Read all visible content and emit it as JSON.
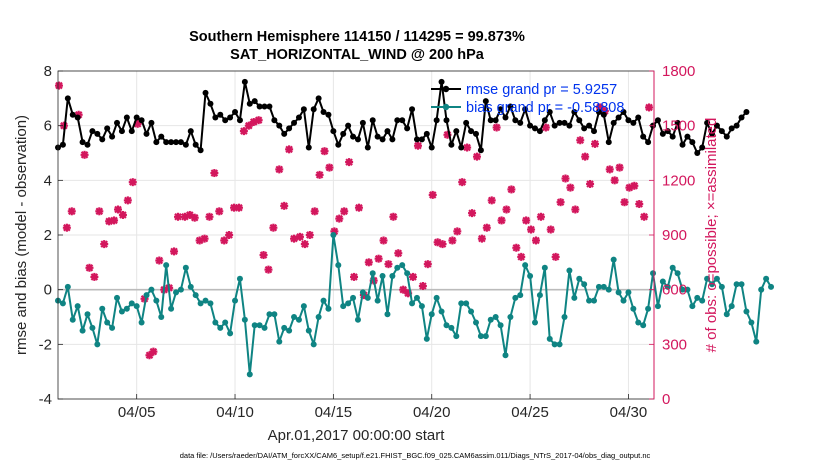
{
  "chart_data": {
    "type": "line",
    "title": "Southern Hemisphere 114150 / 114295 = 99.873%",
    "subtitle": "SAT_HORIZONTAL_WIND @ 200 hPa",
    "xlabel": "Apr.01,2017 00:00:00 start",
    "ylabel": "rmse and bias (model - observation)",
    "y2label": "# of obs: o=possible; ×=assimilated",
    "footnote": "data file: /Users/raeder/DAI/ATM_forcXX/CAM6_setup/f.e21.FHIST_BGC.f09_025.CAM6assim.011/Diags_NTrS_2017-04/obs_diag_output.nc",
    "xlim": [
      1,
      31.3
    ],
    "ylim": [
      -4,
      8
    ],
    "y2lim": [
      0,
      1800
    ],
    "xticks": [
      {
        "value": 5,
        "label": "04/05"
      },
      {
        "value": 10,
        "label": "04/10"
      },
      {
        "value": 15,
        "label": "04/15"
      },
      {
        "value": 20,
        "label": "04/20"
      },
      {
        "value": 25,
        "label": "04/25"
      },
      {
        "value": 30,
        "label": "04/30"
      }
    ],
    "yticks": [
      "-4",
      "-2",
      "0",
      "2",
      "4",
      "6",
      "8"
    ],
    "y2ticks": [
      "0",
      "300",
      "600",
      "900",
      "1200",
      "1500",
      "1800"
    ],
    "grid": true,
    "colors": {
      "rmse": "#000000",
      "bias": "#0f8483",
      "obs": "#d3175d",
      "zero": "#bbbbbb",
      "legend_text": "#0033ee"
    },
    "series": [
      {
        "name": "rmse grand pr = 5.9257",
        "axis": "left",
        "x_start": 1,
        "x_step": 0.25,
        "values": [
          5.2,
          5.3,
          7.0,
          6.4,
          6.3,
          5.4,
          5.3,
          5.8,
          5.7,
          5.5,
          5.9,
          5.6,
          6.1,
          5.8,
          6.3,
          5.8,
          6.3,
          6.2,
          5.7,
          6.1,
          5.4,
          5.6,
          5.4,
          5.4,
          5.4,
          5.4,
          5.3,
          5.8,
          5.3,
          5.1,
          7.2,
          6.8,
          6.3,
          6.4,
          6.2,
          6.3,
          6.5,
          6.2,
          7.6,
          6.8,
          6.9,
          6.7,
          6.7,
          6.7,
          6.2,
          6.0,
          5.7,
          5.9,
          6.1,
          6.3,
          6.6,
          5.2,
          6.6,
          7.0,
          6.5,
          6.4,
          5.8,
          5.3,
          5.7,
          6.0,
          5.6,
          5.5,
          6.1,
          5.2,
          6.2,
          5.6,
          5.5,
          5.8,
          5.5,
          6.2,
          6.2,
          5.9,
          6.6,
          5.5,
          5.5,
          5.7,
          5.2,
          6.2,
          7.6,
          6.2,
          5.3,
          5.8,
          5.2,
          6.1,
          5.8,
          5.7,
          5.1,
          6.9,
          6.2,
          6.2,
          6.6,
          6.3,
          6.7,
          6.2,
          6.1,
          6.6,
          6.0,
          5.9,
          5.8,
          6.2,
          6.5,
          6.0,
          6.1,
          6.1,
          6.0,
          6.5,
          6.2,
          5.9,
          6.0,
          5.8,
          6.5,
          6.4,
          5.4,
          6.1,
          6.3,
          6.5,
          6.2,
          6.1,
          6.3,
          5.6,
          5.4,
          6.0,
          6.2,
          5.7,
          5.8,
          5.6,
          6.1,
          5.3,
          5.6,
          5.4,
          5.0,
          5.2,
          6.1,
          5.7,
          6.0,
          5.8,
          5.6,
          5.9,
          6.0,
          6.3,
          6.5
        ]
      },
      {
        "name": "bias grand pr = -0.58808",
        "axis": "left",
        "x_start": 1,
        "x_step": 0.25,
        "values": [
          -0.4,
          -0.5,
          0.1,
          -1.1,
          -0.6,
          -1.5,
          -0.9,
          -1.4,
          -2.0,
          -0.7,
          -1.2,
          -1.4,
          -0.3,
          -0.8,
          -0.7,
          -0.5,
          -0.6,
          -1.2,
          -0.2,
          0.0,
          -0.4,
          -1.0,
          0.9,
          -0.7,
          -0.1,
          0.0,
          0.8,
          0.1,
          -0.2,
          -0.5,
          -0.4,
          -0.5,
          -1.2,
          -1.4,
          -1.2,
          -1.6,
          -0.4,
          0.4,
          -1.1,
          -3.1,
          -1.3,
          -1.3,
          -1.4,
          -0.9,
          -0.9,
          -1.9,
          -1.4,
          -1.5,
          -1.0,
          -1.1,
          -0.6,
          -1.5,
          -2.0,
          -1.0,
          -0.4,
          -0.7,
          2.0,
          0.9,
          -0.6,
          -0.5,
          -0.3,
          -1.1,
          -0.1,
          -0.3,
          0.6,
          -0.4,
          0.5,
          -0.9,
          0.5,
          0.8,
          0.9,
          0.6,
          -0.5,
          -0.3,
          -0.6,
          -1.8,
          -0.9,
          -0.3,
          -0.8,
          -1.3,
          -1.4,
          -1.7,
          -0.5,
          -0.5,
          -0.8,
          -1.2,
          -1.7,
          -1.7,
          -1.1,
          -1.0,
          -1.3,
          -2.4,
          -1.0,
          -0.3,
          -0.2,
          0.9,
          0.5,
          -1.2,
          -0.2,
          0.8,
          -1.8,
          -2.0,
          -2.0,
          -1.0,
          0.7,
          -0.3,
          0.4,
          0.2,
          -0.4,
          -0.4,
          0.1,
          0.1,
          0.0,
          1.1,
          -0.1,
          -0.4,
          -0.1,
          -0.7,
          -1.2,
          -1.3,
          -0.7,
          0.6,
          -0.6,
          0.3,
          0.1,
          0.8,
          0.6,
          0.0,
          0.0,
          -0.6,
          -0.3,
          -0.4,
          0.4,
          0.2,
          0.4,
          0.1,
          -0.9,
          -0.6,
          0.2,
          0.2,
          -0.8,
          -1.2,
          -1.9,
          0.0,
          0.4,
          0.1
        ]
      },
      {
        "name": "# of obs assimilated",
        "axis": "right",
        "x": [
          1.05,
          1.3,
          1.45,
          1.7,
          2.05,
          2.35,
          2.6,
          2.85,
          3.1,
          3.35,
          3.6,
          3.85,
          4.05,
          4.3,
          4.55,
          4.8,
          5.05,
          5.4,
          5.65,
          5.85,
          6.15,
          6.4,
          6.65,
          6.9,
          7.1,
          7.45,
          7.7,
          7.95,
          8.2,
          8.45,
          8.7,
          8.95,
          9.2,
          9.45,
          9.7,
          9.95,
          10.2,
          10.45,
          10.7,
          10.95,
          11.2,
          11.45,
          11.7,
          11.95,
          12.25,
          12.5,
          12.75,
          13.0,
          13.3,
          13.55,
          13.8,
          14.05,
          14.3,
          14.55,
          14.8,
          15.05,
          15.3,
          15.55,
          15.8,
          16.05,
          16.3,
          16.55,
          16.8,
          17.05,
          17.3,
          17.55,
          17.8,
          18.05,
          18.3,
          18.55,
          18.8,
          19.05,
          19.3,
          19.55,
          19.8,
          20.05,
          20.3,
          20.55,
          20.8,
          21.05,
          21.3,
          21.55,
          21.8,
          22.05,
          22.3,
          22.55,
          22.8,
          23.05,
          23.3,
          23.55,
          23.8,
          24.05,
          24.3,
          24.55,
          24.8,
          25.05,
          25.3,
          25.55,
          25.8,
          26.05,
          26.3,
          26.55,
          26.8,
          27.05,
          27.3,
          27.55,
          27.8,
          28.05,
          28.3,
          28.55,
          28.8,
          29.05,
          29.3,
          29.55,
          29.8,
          30.05,
          30.3,
          30.55,
          30.8,
          31.05
        ],
        "values": [
          1720,
          1500,
          940,
          1030,
          1560,
          1340,
          720,
          670,
          1030,
          850,
          975,
          980,
          1040,
          1010,
          1090,
          1190,
          1510,
          550,
          240,
          260,
          760,
          600,
          610,
          810,
          1000,
          1000,
          1010,
          995,
          870,
          880,
          1000,
          1240,
          1030,
          870,
          900,
          1050,
          1050,
          1470,
          1500,
          1520,
          1530,
          790,
          710,
          940,
          1260,
          1060,
          1370,
          880,
          890,
          850,
          900,
          1030,
          1230,
          1360,
          1270,
          920,
          990,
          1030,
          1300,
          670,
          1050,
          570,
          750,
          650,
          770,
          870,
          740,
          1000,
          800,
          600,
          580,
          670,
          1390,
          620,
          740,
          1120,
          860,
          850,
          1450,
          870,
          920,
          1190,
          1380,
          1020,
          1330,
          880,
          940,
          1090,
          1490,
          980,
          1040,
          1150,
          830,
          780,
          980,
          930,
          870,
          1000,
          1490,
          930,
          780,
          1080,
          1210,
          1160,
          1040,
          1420,
          1330,
          1180,
          1400,
          1600,
          1580,
          1260,
          1200,
          1270,
          1080,
          1160,
          1170,
          1070,
          1000,
          1600
        ]
      }
    ]
  }
}
